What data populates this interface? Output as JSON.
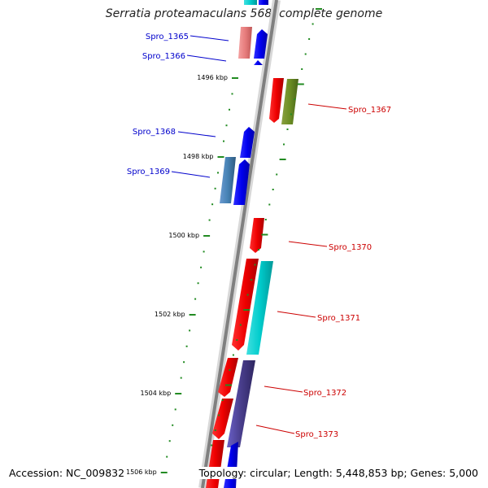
{
  "title": "Serratia proteamaculans 568, complete genome",
  "footer": {
    "accession": "Accession: NC_009832",
    "summary": "Topology: circular; Length: 5,448,853 bp; Genes: 5,000"
  },
  "colors": {
    "forward_label": "#0000cc",
    "reverse_label": "#cc0000",
    "ticks": "#228b22",
    "backbone": "#808080"
  },
  "scale_labels": [
    "1496 kbp",
    "1498 kbp",
    "1500 kbp",
    "1502 kbp",
    "1504 kbp",
    "1506 kbp"
  ],
  "gene_labels": {
    "forward": [
      "Spro_1365",
      "Spro_1366",
      "Spro_1368",
      "Spro_1369"
    ],
    "reverse": [
      "Spro_1367",
      "Spro_1370",
      "Spro_1371",
      "Spro_1372",
      "Spro_1373"
    ]
  }
}
